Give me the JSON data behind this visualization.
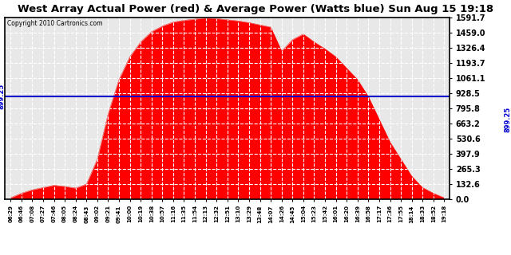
{
  "title": "West Array Actual Power (red) & Average Power (Watts blue) Sun Aug 15 19:18",
  "copyright": "Copyright 2010 Cartronics.com",
  "avg_power": 899.25,
  "y_max": 1591.7,
  "y_ticks": [
    0.0,
    132.6,
    265.3,
    397.9,
    530.6,
    663.2,
    795.8,
    928.5,
    1061.1,
    1193.7,
    1326.4,
    1459.0,
    1591.7
  ],
  "bg_color": "#ffffff",
  "fill_color": "#ff0000",
  "avg_line_color": "#0000cc",
  "grid_color": "#cccccc",
  "title_fontsize": 10,
  "x_labels": [
    "06:29",
    "06:46",
    "07:08",
    "07:27",
    "07:46",
    "08:05",
    "08:24",
    "08:43",
    "09:02",
    "09:21",
    "09:41",
    "10:00",
    "10:19",
    "10:38",
    "10:57",
    "11:16",
    "11:35",
    "11:54",
    "12:13",
    "12:32",
    "12:51",
    "13:10",
    "13:29",
    "13:48",
    "14:07",
    "14:26",
    "14:45",
    "15:04",
    "15:23",
    "15:42",
    "16:01",
    "16:20",
    "16:39",
    "16:58",
    "17:17",
    "17:36",
    "17:55",
    "18:14",
    "18:33",
    "18:52",
    "19:18"
  ],
  "y_values": [
    10,
    50,
    80,
    100,
    120,
    110,
    95,
    130,
    350,
    750,
    1050,
    1250,
    1380,
    1470,
    1520,
    1555,
    1570,
    1580,
    1591,
    1585,
    1575,
    1565,
    1550,
    1530,
    1510,
    1300,
    1400,
    1450,
    1380,
    1320,
    1250,
    1150,
    1050,
    900,
    700,
    500,
    350,
    200,
    100,
    50,
    10
  ]
}
